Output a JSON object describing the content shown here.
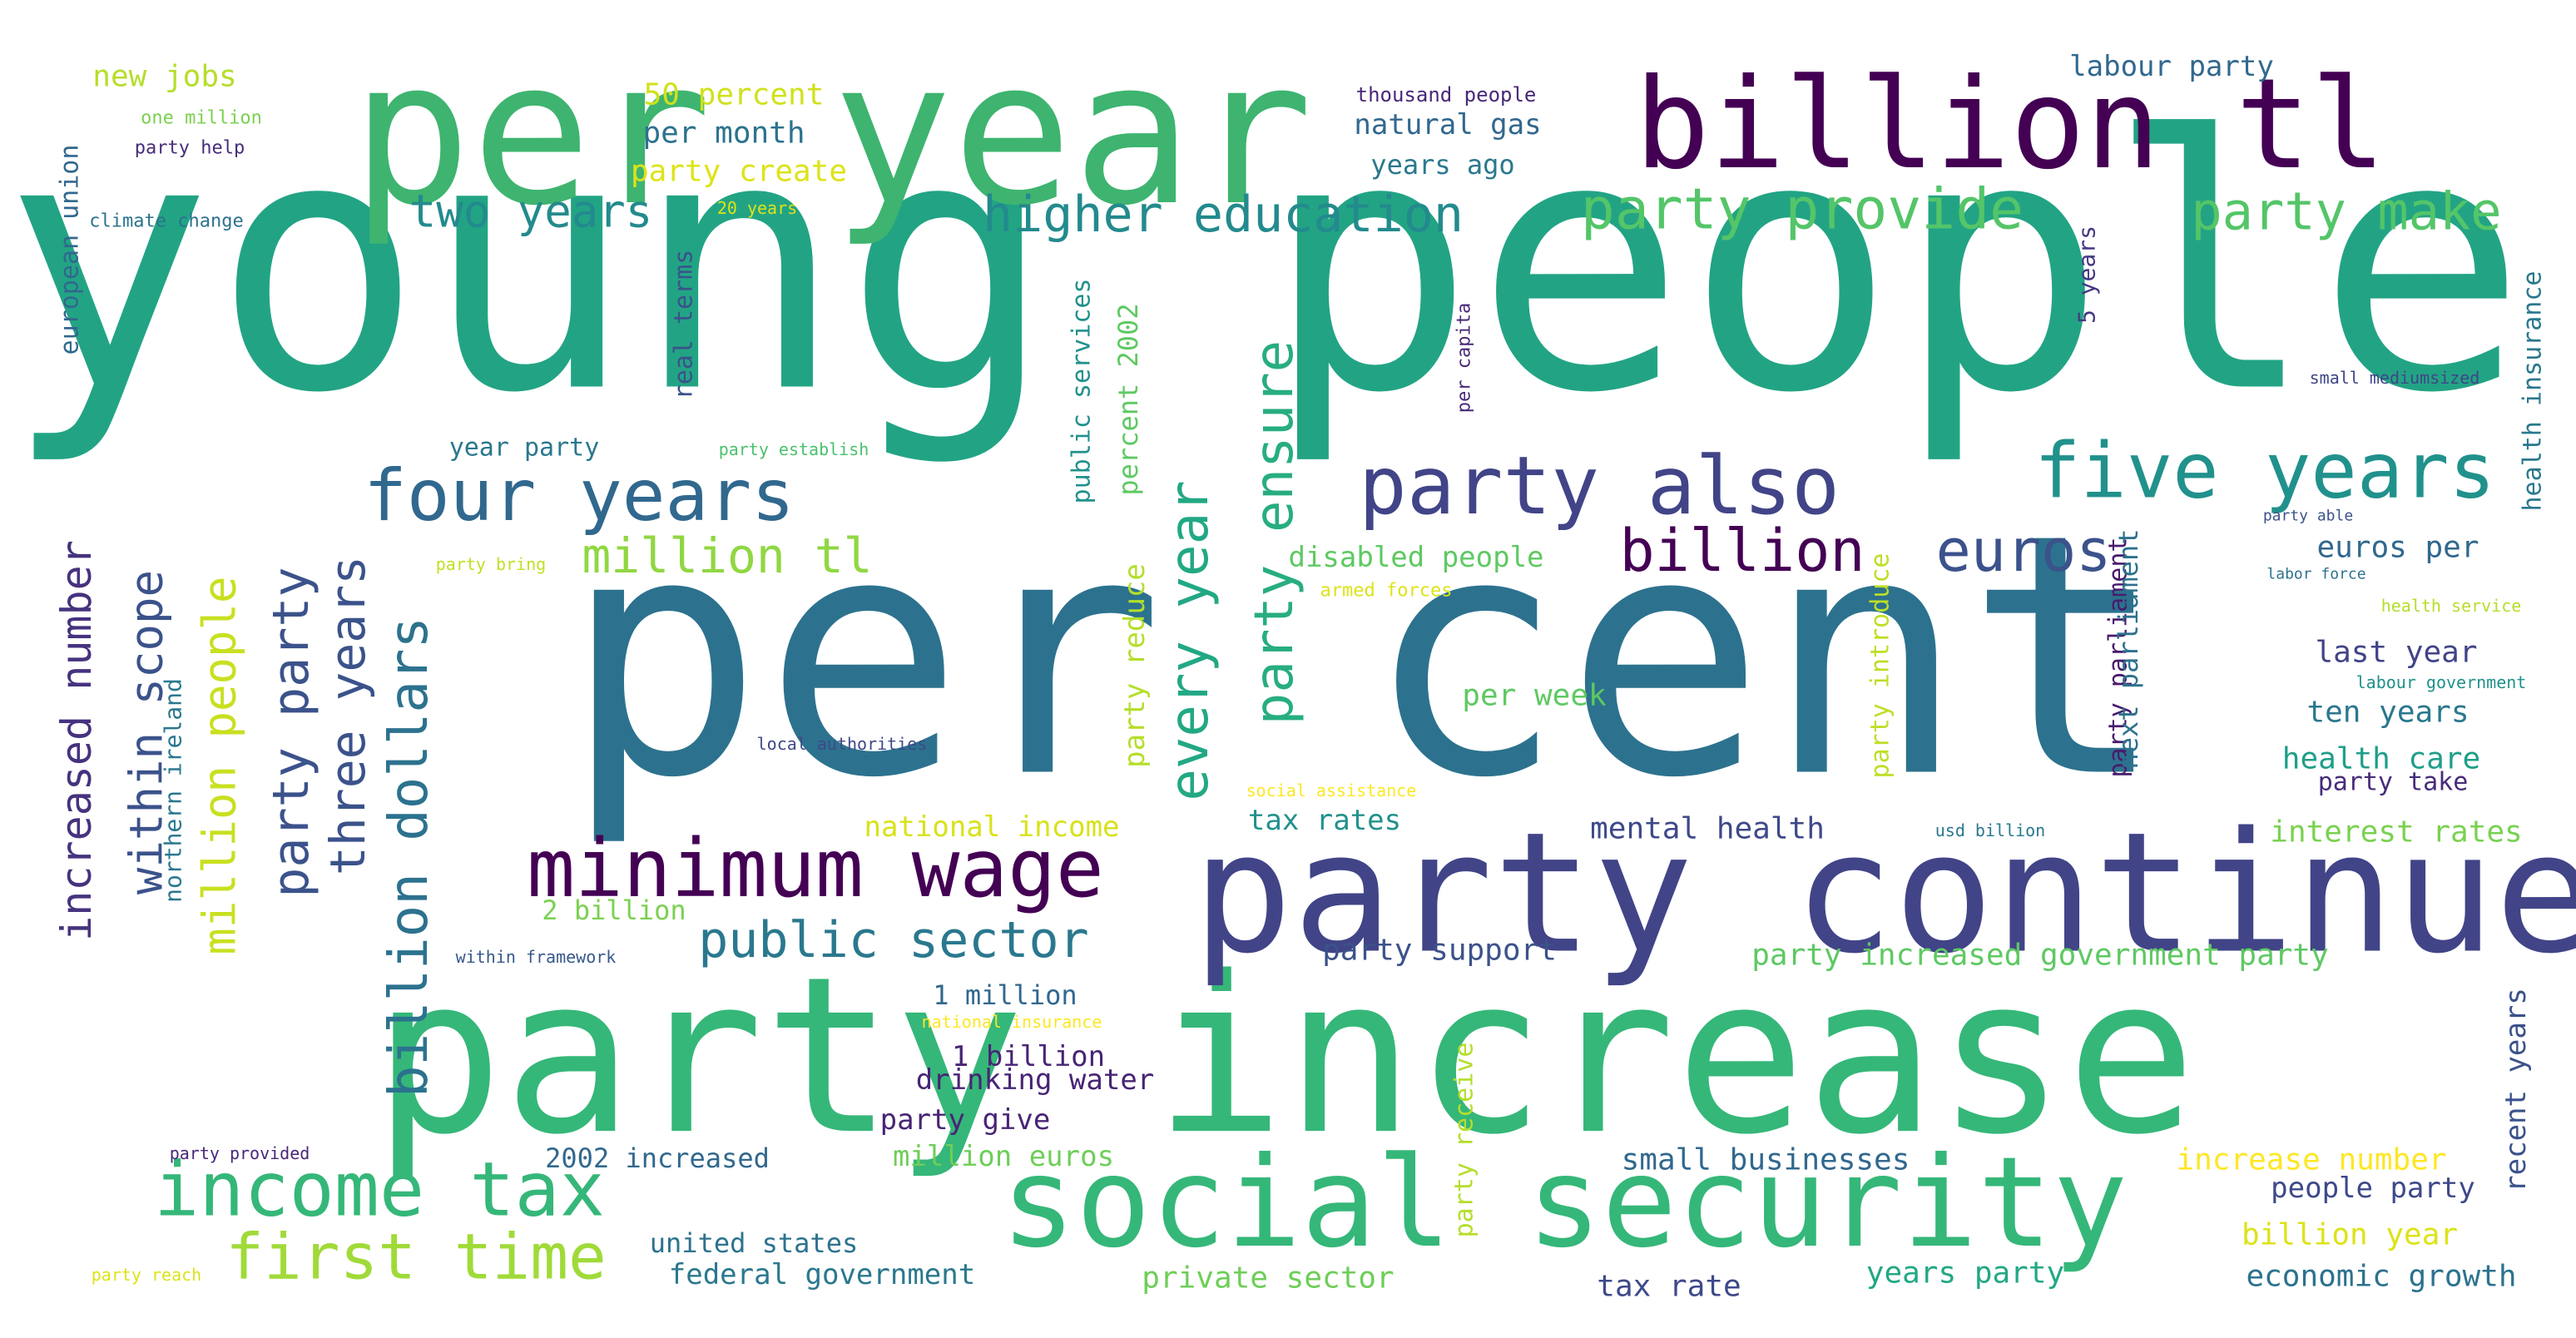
{
  "words": [
    {
      "text": "young people",
      "color": "#22a484"
    },
    {
      "text": "per cent",
      "color": "#2c728e"
    },
    {
      "text": "party increase",
      "color": "#35b779"
    },
    {
      "text": "per year",
      "color": "#3eb470"
    },
    {
      "text": "billion tl",
      "color": "#440154"
    },
    {
      "text": "party continue",
      "color": "#414487"
    },
    {
      "text": "social security",
      "color": "#35b779"
    },
    {
      "text": "minimum wage",
      "color": "#440154"
    },
    {
      "text": "income tax",
      "color": "#35b779"
    },
    {
      "text": "four years",
      "color": "#31688e"
    },
    {
      "text": "party also",
      "color": "#414487"
    },
    {
      "text": "five years",
      "color": "#21918c"
    },
    {
      "text": "billion",
      "color": "#440154"
    },
    {
      "text": "euros",
      "color": "#3b528b"
    },
    {
      "text": "first time",
      "color": "#a0da39"
    },
    {
      "text": "party provide",
      "color": "#54c568"
    },
    {
      "text": "party make",
      "color": "#54c568"
    },
    {
      "text": "higher education",
      "color": "#238a8d"
    },
    {
      "text": "two years",
      "color": "#238a8d"
    },
    {
      "text": "million tl",
      "color": "#90d743"
    },
    {
      "text": "public sector",
      "color": "#2a788e"
    },
    {
      "text": "every year",
      "color": "#22a884"
    },
    {
      "text": "party ensure",
      "color": "#27ad81"
    },
    {
      "text": "billion dollars",
      "color": "#2c728e"
    },
    {
      "text": "party party",
      "color": "#3b528b"
    },
    {
      "text": "three years",
      "color": "#3b528b"
    },
    {
      "text": "million people",
      "color": "#c8e020"
    },
    {
      "text": "within scope",
      "color": "#3b528b"
    },
    {
      "text": "increased number",
      "color": "#46327e"
    },
    {
      "text": "new jobs",
      "color": "#b5de2b"
    },
    {
      "text": "50 percent",
      "color": "#d0e11c"
    },
    {
      "text": "per month",
      "color": "#2c728e"
    },
    {
      "text": "party create",
      "color": "#dde318"
    },
    {
      "text": "labour party",
      "color": "#31688e"
    },
    {
      "text": "natural gas",
      "color": "#31688e"
    },
    {
      "text": "years ago",
      "color": "#2a788e"
    },
    {
      "text": "thousand people",
      "color": "#482878"
    },
    {
      "text": "one million",
      "color": "#7ad151"
    },
    {
      "text": "party help",
      "color": "#472d7b"
    },
    {
      "text": "climate change",
      "color": "#2c728e"
    },
    {
      "text": "20 years",
      "color": "#dde318"
    },
    {
      "text": "european union",
      "color": "#31688e"
    },
    {
      "text": "northern ireland",
      "color": "#2a788e"
    },
    {
      "text": "real terms",
      "color": "#3b528b"
    },
    {
      "text": "party establish",
      "color": "#4ac16d"
    },
    {
      "text": "year party",
      "color": "#2a788e"
    },
    {
      "text": "public services",
      "color": "#21918c"
    },
    {
      "text": "percent 2002",
      "color": "#5ec962"
    },
    {
      "text": "party reduce",
      "color": "#b5de2b"
    },
    {
      "text": "per capita",
      "color": "#482878"
    },
    {
      "text": "5 years",
      "color": "#443983"
    },
    {
      "text": "health insurance",
      "color": "#2a788e"
    },
    {
      "text": "small mediumsized",
      "color": "#404688"
    },
    {
      "text": "party able",
      "color": "#3b528b"
    },
    {
      "text": "labor force",
      "color": "#2c728e"
    },
    {
      "text": "health service",
      "color": "#b5de2b"
    },
    {
      "text": "labour government",
      "color": "#21918c"
    },
    {
      "text": "disabled people",
      "color": "#5ec962"
    },
    {
      "text": "armed forces",
      "color": "#dde318"
    },
    {
      "text": "party bring",
      "color": "#c2df23"
    },
    {
      "text": "per week",
      "color": "#5ec962"
    },
    {
      "text": "euros per",
      "color": "#31688e"
    },
    {
      "text": "last year",
      "color": "#414487"
    },
    {
      "text": "ten years",
      "color": "#2a788e"
    },
    {
      "text": "health care",
      "color": "#1f9e89"
    },
    {
      "text": "party take",
      "color": "#472c7a"
    },
    {
      "text": "interest rates",
      "color": "#7ad151"
    },
    {
      "text": "party parliament",
      "color": "#481b6d"
    },
    {
      "text": "next parliament",
      "color": "#2c728e"
    },
    {
      "text": "party introduce",
      "color": "#bddf26"
    },
    {
      "text": "usd billion",
      "color": "#2a788e"
    },
    {
      "text": "local authorities",
      "color": "#3e4989"
    },
    {
      "text": "social assistance",
      "color": "#fde725"
    },
    {
      "text": "national income",
      "color": "#d8e219"
    },
    {
      "text": "tax rates",
      "color": "#21918c"
    },
    {
      "text": "mental health",
      "color": "#3e4989"
    },
    {
      "text": "2 billion",
      "color": "#7ad151"
    },
    {
      "text": "within framework",
      "color": "#38598c"
    },
    {
      "text": "party support",
      "color": "#3b528b"
    },
    {
      "text": "party increased government party",
      "color": "#5ec962"
    },
    {
      "text": "1 million",
      "color": "#31688e"
    },
    {
      "text": "national insurance",
      "color": "#fde725"
    },
    {
      "text": "1 billion",
      "color": "#482475"
    },
    {
      "text": "drinking water",
      "color": "#482475"
    },
    {
      "text": "party give",
      "color": "#482475"
    },
    {
      "text": "party receive",
      "color": "#b5de2b"
    },
    {
      "text": "recent years",
      "color": "#3b528b"
    },
    {
      "text": "million euros",
      "color": "#6ece58"
    },
    {
      "text": "2002 increased",
      "color": "#31688e"
    },
    {
      "text": "small businesses",
      "color": "#31688e"
    },
    {
      "text": "increase number",
      "color": "#fde725"
    },
    {
      "text": "people party",
      "color": "#3e4989"
    },
    {
      "text": "party provided",
      "color": "#482878"
    },
    {
      "text": "united states",
      "color": "#2c728e"
    },
    {
      "text": "billion year",
      "color": "#dde318"
    },
    {
      "text": "party reach",
      "color": "#dde318"
    },
    {
      "text": "federal government",
      "color": "#2a788e"
    },
    {
      "text": "private sector",
      "color": "#6ece58"
    },
    {
      "text": "tax rate",
      "color": "#3e4989"
    },
    {
      "text": "years party",
      "color": "#22a884"
    },
    {
      "text": "economic growth",
      "color": "#2c728e"
    }
  ]
}
